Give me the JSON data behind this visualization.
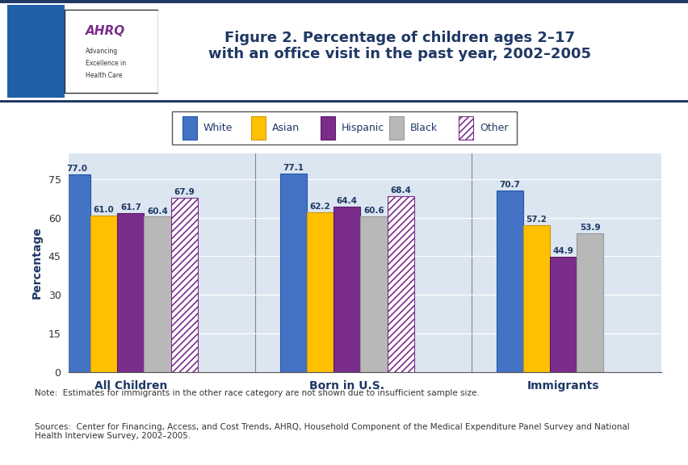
{
  "title": "Figure 2. Percentage of children ages 2–17\nwith an office visit in the past year, 2002–2005",
  "ylabel": "Percentage",
  "groups": [
    "All Children",
    "Born in U.S.",
    "Immigrants"
  ],
  "categories": [
    "White",
    "Asian",
    "Hispanic",
    "Black",
    "Other"
  ],
  "values": {
    "All Children": [
      77.0,
      61.0,
      61.7,
      60.4,
      67.9
    ],
    "Born in U.S.": [
      77.1,
      62.2,
      64.4,
      60.6,
      68.4
    ],
    "Immigrants": [
      70.7,
      57.2,
      44.9,
      53.9,
      null
    ]
  },
  "bar_colors": [
    "#4472C4",
    "#FFC000",
    "#7B2D8B",
    "#B8B8B8",
    "#FFFFFF"
  ],
  "hatch_colors": [
    null,
    null,
    null,
    null,
    "#7B2D8B"
  ],
  "hatches": [
    null,
    null,
    null,
    null,
    "////"
  ],
  "bar_edge_colors": [
    "#2255AA",
    "#CC9900",
    "#5A1A6B",
    "#999999",
    "#7B2D8B"
  ],
  "bar_width": 0.13,
  "ylim": [
    0,
    85
  ],
  "yticks": [
    0,
    15,
    30,
    45,
    60,
    75
  ],
  "note": "Note:  Estimates for immigrants in the other race category are not shown due to insufficient sample size.",
  "sources": "Sources:  Center for Financing, Access, and Cost Trends, AHRQ, Household Component of the Medical Expenditure Panel Survey and National\nHealth Interview Survey, 2002–2005.",
  "background_color": "#FFFFFF",
  "plot_background": "#DCE6F1",
  "title_color": "#1F3864",
  "label_color": "#1F3864",
  "legend_color": "#1F3864",
  "header_line_color": "#1F3864",
  "header_bg": "#FFFFFF"
}
